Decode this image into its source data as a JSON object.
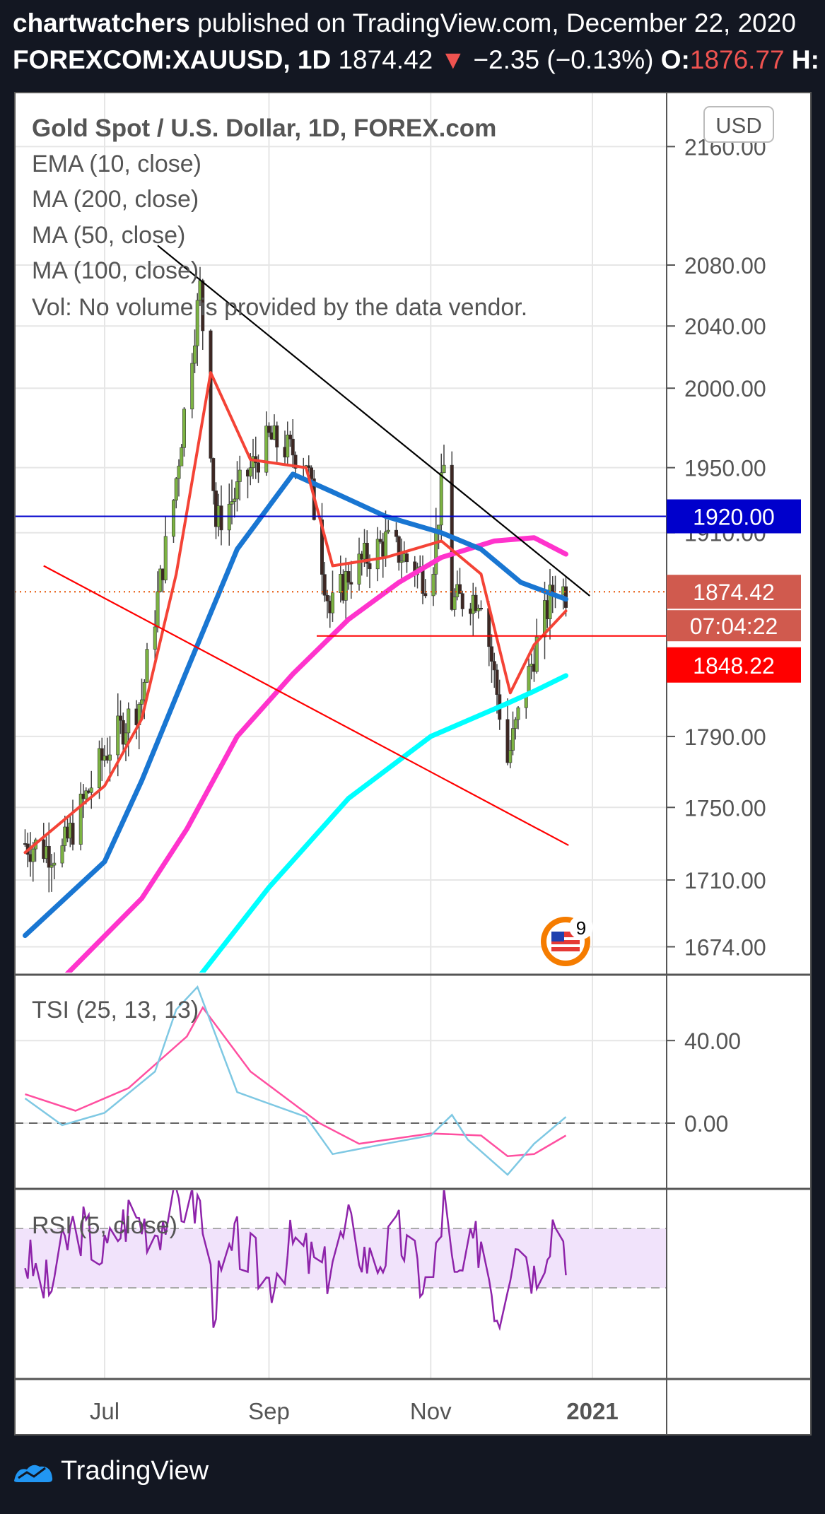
{
  "header": {
    "author": "chartwatchers",
    "published_text": "published on TradingView.com, December 22, 2020",
    "symbol": "FOREXCOM:XAUUSD, 1D",
    "last": "1874.42",
    "arrow": "▼",
    "change": "−2.35 (−0.13%)",
    "open_label": "O:",
    "open_value": "1876.77",
    "high_label": "H:"
  },
  "footer": {
    "brand": "TradingView"
  },
  "colors": {
    "background": "#131722",
    "panel": "#ffffff",
    "ema10": "#f44336",
    "ma200": "#00ffff",
    "ma50": "#1976d2",
    "ma100": "#ff33cc",
    "tsi": "#7ec8e3",
    "tsi_signal": "#ff4fa0",
    "rsi": "#8e24aa",
    "rsi_band": "#f1e3fb",
    "level_blue": "#0000cc",
    "level_red": "#ff0000"
  },
  "chart_data": [
    {
      "type": "candlestick",
      "title": "Gold Spot / U.S. Dollar, 1D, FOREX.com",
      "legend": [
        "EMA (10, close)",
        "MA (200, close)",
        "MA (50, close)",
        "MA (100, close)",
        "Vol: No volume is provided by the data vendor."
      ],
      "currency": "USD",
      "x_ticks": [
        "Jul",
        "Sep",
        "Nov",
        "2021"
      ],
      "y_ticks": [
        2160,
        2080,
        2040,
        2000,
        1950,
        1910,
        1790,
        1750,
        1710,
        1674
      ],
      "y_tick_labels": [
        "2160.00",
        "2080.00",
        "2040.00",
        "2000.00",
        "1950.00",
        "1910.00",
        "1790.00",
        "1750.00",
        "1710.00",
        "1674.00"
      ],
      "ylim": [
        1657,
        2195
      ],
      "y_scale": "log",
      "price_tags": [
        {
          "label": "1920.00",
          "value": 1920,
          "color": "#0000cc"
        },
        {
          "label": "1874.42",
          "value": 1874.42,
          "color": "#d05a4e"
        },
        {
          "label": "07:04:22",
          "color": "#d05a4e"
        },
        {
          "label": "1848.22",
          "value": 1848.22,
          "color": "#ff0000"
        }
      ],
      "horizontal_levels": [
        {
          "value": 1920,
          "color": "#0000cc",
          "style": "solid"
        },
        {
          "value": 1874.42,
          "color": "#e65100",
          "style": "dotted"
        },
        {
          "value": 1848.22,
          "color": "#ff0000",
          "style": "solid",
          "from": "2020-09-19"
        }
      ],
      "trendlines": [
        {
          "color": "#000000",
          "from": [
            "2020-07-21",
            2093
          ],
          "to": [
            "2020-12-31",
            1872
          ]
        },
        {
          "color": "#ff0000",
          "from": [
            "2020-06-08",
            1890
          ],
          "to": [
            "2020-12-23",
            1729
          ]
        }
      ],
      "series": [
        {
          "name": "close",
          "x": [
            "2020-06-01",
            "2020-06-15",
            "2020-07-01",
            "2020-07-15",
            "2020-07-27",
            "2020-08-06",
            "2020-08-12",
            "2020-08-20",
            "2020-09-01",
            "2020-09-15",
            "2020-09-24",
            "2020-10-01",
            "2020-10-15",
            "2020-11-01",
            "2020-11-06",
            "2020-11-09",
            "2020-11-20",
            "2020-11-30",
            "2020-12-10",
            "2020-12-18",
            "2020-12-22"
          ],
          "values": [
            1730,
            1725,
            1780,
            1812,
            1930,
            2065,
            1915,
            1935,
            1968,
            1955,
            1862,
            1885,
            1905,
            1880,
            1950,
            1868,
            1873,
            1776,
            1838,
            1880,
            1874
          ]
        },
        {
          "name": "EMA (10, close)",
          "x": [
            "2020-06-01",
            "2020-07-01",
            "2020-07-15",
            "2020-07-28",
            "2020-08-10",
            "2020-08-25",
            "2020-09-15",
            "2020-09-25",
            "2020-10-15",
            "2020-11-05",
            "2020-11-20",
            "2020-12-01",
            "2020-12-10",
            "2020-12-22"
          ],
          "values": [
            1725,
            1762,
            1800,
            1885,
            2010,
            1955,
            1950,
            1890,
            1895,
            1905,
            1885,
            1815,
            1843,
            1863
          ]
        },
        {
          "name": "MA (200, close)",
          "x": [
            "2020-08-05",
            "2020-09-01",
            "2020-10-01",
            "2020-11-01",
            "2020-11-30",
            "2020-12-10",
            "2020-12-22"
          ],
          "values": [
            1657,
            1706,
            1755,
            1790,
            1809,
            1816,
            1825
          ]
        },
        {
          "name": "MA (50, close)",
          "x": [
            "2020-06-01",
            "2020-07-01",
            "2020-07-15",
            "2020-08-01",
            "2020-08-20",
            "2020-09-10",
            "2020-09-25",
            "2020-10-15",
            "2020-11-05",
            "2020-11-20",
            "2020-12-05",
            "2020-12-22"
          ],
          "values": [
            1680,
            1720,
            1765,
            1828,
            1900,
            1946,
            1935,
            1920,
            1910,
            1900,
            1880,
            1870
          ]
        },
        {
          "name": "MA (100, close)",
          "x": [
            "2020-06-15",
            "2020-07-15",
            "2020-08-01",
            "2020-08-20",
            "2020-09-10",
            "2020-10-01",
            "2020-10-20",
            "2020-11-05",
            "2020-11-25",
            "2020-12-10",
            "2020-12-22"
          ],
          "values": [
            1657,
            1700,
            1738,
            1790,
            1826,
            1858,
            1880,
            1895,
            1905,
            1907,
            1897
          ]
        }
      ]
    },
    {
      "type": "line",
      "title": "TSI (25, 13, 13)",
      "y_ticks": [
        40,
        0
      ],
      "y_tick_labels": [
        "40.00",
        "0.00"
      ],
      "ylim": [
        -28,
        70
      ],
      "series": [
        {
          "name": "TSI",
          "x": [
            "2020-06-01",
            "2020-06-15",
            "2020-07-01",
            "2020-07-20",
            "2020-07-28",
            "2020-08-05",
            "2020-08-20",
            "2020-09-15",
            "2020-09-25",
            "2020-10-15",
            "2020-11-01",
            "2020-11-09",
            "2020-11-15",
            "2020-11-30",
            "2020-12-10",
            "2020-12-22"
          ],
          "values": [
            12,
            -1,
            5,
            25,
            55,
            66,
            15,
            3,
            -15,
            -10,
            -6,
            4,
            -8,
            -25,
            -10,
            3
          ]
        },
        {
          "name": "signal",
          "x": [
            "2020-06-01",
            "2020-06-20",
            "2020-07-10",
            "2020-08-01",
            "2020-08-07",
            "2020-08-25",
            "2020-09-20",
            "2020-10-05",
            "2020-11-01",
            "2020-11-20",
            "2020-11-30",
            "2020-12-10",
            "2020-12-22"
          ],
          "values": [
            14,
            6,
            17,
            42,
            56,
            25,
            0,
            -10,
            -5,
            -6,
            -16,
            -15,
            -6
          ]
        }
      ]
    },
    {
      "type": "line",
      "title": "RSI (5, close)",
      "ylim": [
        0,
        100
      ],
      "band": [
        30,
        70
      ],
      "series": [
        {
          "name": "RSI",
          "x": [
            "2020-06-01",
            "2020-06-10",
            "2020-06-20",
            "2020-07-01",
            "2020-07-10",
            "2020-07-20",
            "2020-07-28",
            "2020-08-06",
            "2020-08-11",
            "2020-08-20",
            "2020-09-01",
            "2020-09-10",
            "2020-09-22",
            "2020-10-01",
            "2020-10-10",
            "2020-10-20",
            "2020-11-01",
            "2020-11-06",
            "2020-11-10",
            "2020-11-20",
            "2020-11-27",
            "2020-12-03",
            "2020-12-10",
            "2020-12-15",
            "2020-12-18",
            "2020-12-22"
          ],
          "values": [
            50,
            28,
            75,
            52,
            80,
            70,
            88,
            86,
            22,
            60,
            35,
            60,
            40,
            70,
            45,
            65,
            25,
            88,
            30,
            65,
            8,
            72,
            40,
            65,
            80,
            58
          ]
        }
      ]
    }
  ]
}
